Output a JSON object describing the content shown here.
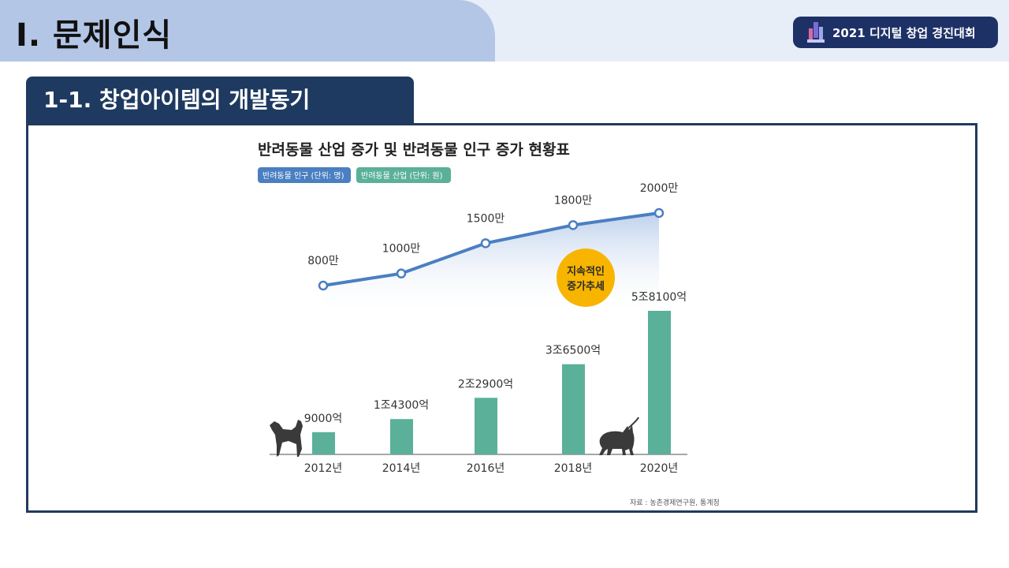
{
  "header": {
    "section_title": "Ⅰ. 문제인식",
    "contest_badge": "2021 디지털 창업 경진대회"
  },
  "subsection": {
    "title": "1-1. 창업아이템의 개발동기"
  },
  "chart_data": {
    "type": "bar",
    "title": "반려동물 산업 증가 및 반려동물 인구 증가 현황표",
    "categories": [
      "2012년",
      "2014년",
      "2016년",
      "2018년",
      "2020년"
    ],
    "series": [
      {
        "name": "반려동물 인구 (단위: 명)",
        "render": "line",
        "color": "#4a7fc1",
        "values": [
          8000000,
          10000000,
          15000000,
          18000000,
          20000000
        ],
        "labels": [
          "800만",
          "1000만",
          "1500만",
          "1800만",
          "2000만"
        ]
      },
      {
        "name": "반려동물 산업 (단위: 원)",
        "render": "bar",
        "color": "#5bb09a",
        "values": [
          900000000000,
          1430000000000,
          2290000000000,
          3650000000000,
          5810000000000
        ],
        "labels": [
          "9000억",
          "1조4300억",
          "2조2900억",
          "3조6500억",
          "5조8100억"
        ]
      }
    ],
    "callout": [
      "지속적인",
      "증가추세"
    ],
    "callout_color": "#f7b500",
    "source": "자료 : 농촌경제연구원, 통계청"
  }
}
